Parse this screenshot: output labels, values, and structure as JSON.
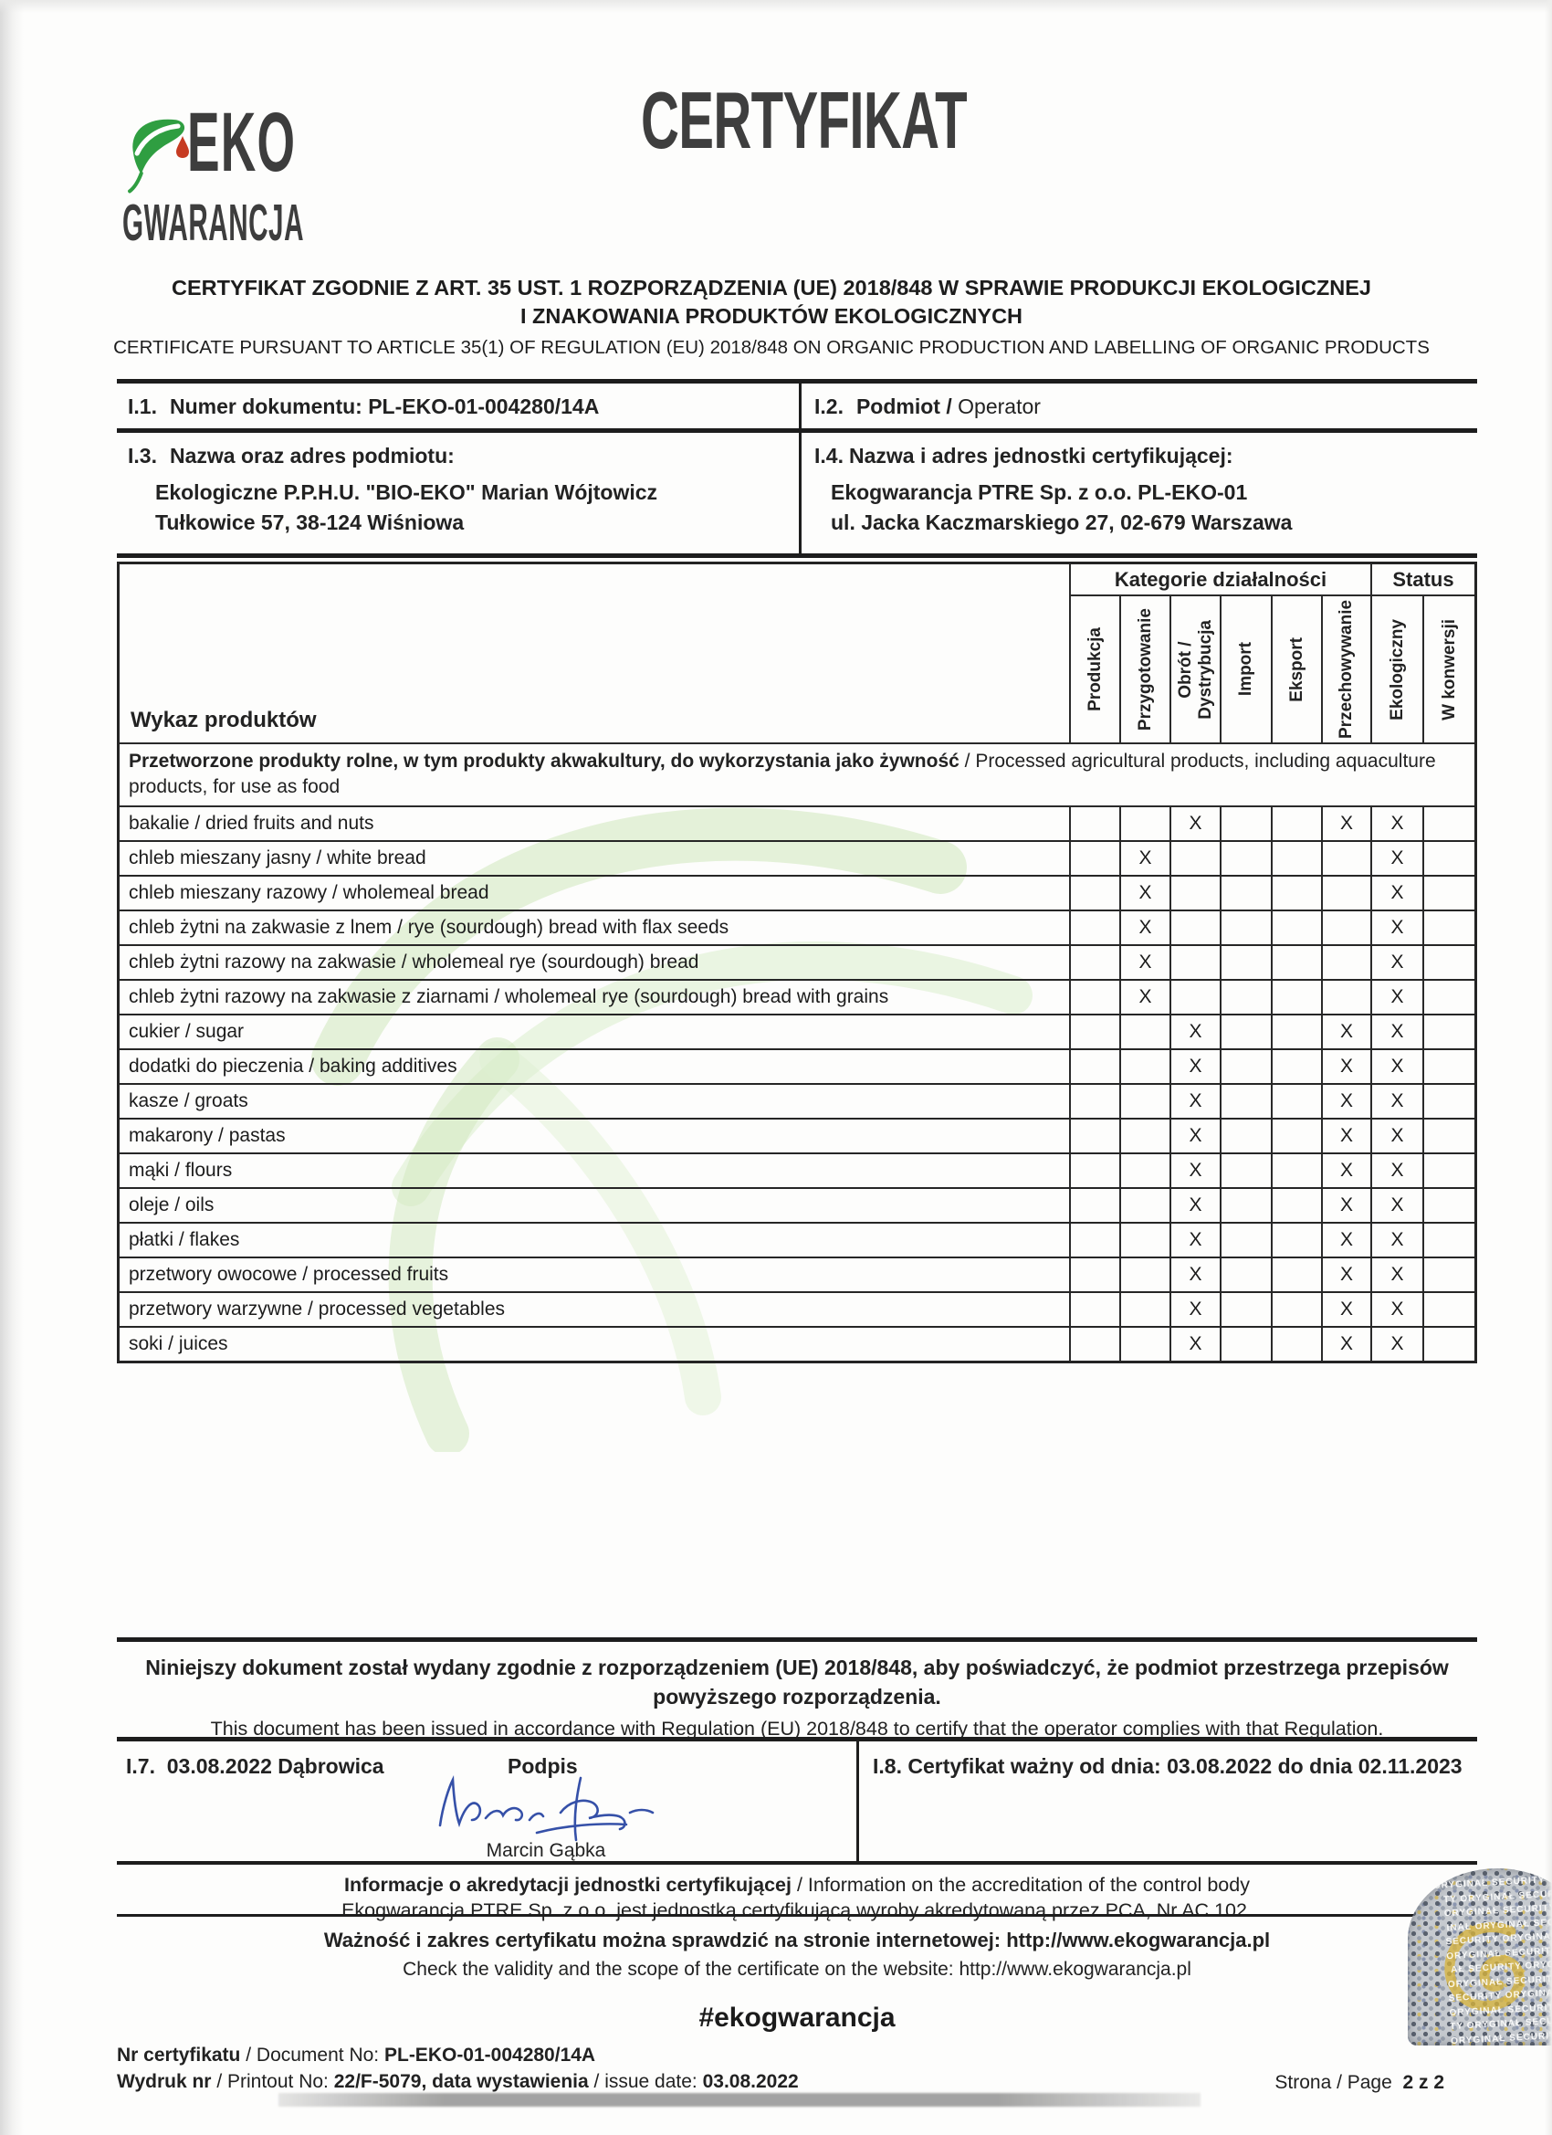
{
  "logo": {
    "line1": "EKO",
    "line2": "GWARANCJA"
  },
  "title": "CERTYFIKAT",
  "subtitle": {
    "pl_line1": "CERTYFIKAT ZGODNIE Z ART. 35 UST. 1 ROZPORZĄDZENIA (UE) 2018/848 W SPRAWIE PRODUKCJI EKOLOGICZNEJ",
    "pl_line2": "I ZNAKOWANIA PRODUKTÓW EKOLOGICZNYCH",
    "en": "CERTIFICATE PURSUANT TO ARTICLE 35(1) OF REGULATION (EU) 2018/848 ON ORGANIC PRODUCTION AND LABELLING OF ORGANIC PRODUCTS"
  },
  "fields": {
    "i1": {
      "num": "I.1.",
      "text": "Numer dokumentu: PL-EKO-01-004280/14A"
    },
    "i2": {
      "num": "I.2.",
      "pl": "Podmiot /",
      "en": "Operator"
    },
    "i3": {
      "num": "I.3.",
      "label": "Nazwa oraz adres podmiotu:",
      "line1": "Ekologiczne P.P.H.U. \"BIO-EKO\" Marian Wójtowicz",
      "line2": "Tułkowice 57, 38-124 Wiśniowa"
    },
    "i4": {
      "num": "I.4.",
      "label": "Nazwa i adres jednostki certyfikującej:",
      "line1": "Ekogwarancja PTRE Sp. z o.o. PL-EKO-01",
      "line2": "ul. Jacka Kaczmarskiego 27, 02-679 Warszawa"
    }
  },
  "table": {
    "products_header": "Wykaz produktów",
    "group_activities": "Kategorie działalności",
    "group_status": "Status",
    "columns": [
      "Produkcja",
      "Przygotowanie",
      "Obrót /\nDystrybucja",
      "Import",
      "Eksport",
      "Przechowywanie",
      "Ekologiczny",
      "W konwersji"
    ],
    "section_pl": "Przetworzone produkty rolne, w tym produkty akwakultury, do wykorzystania jako żywność",
    "section_sep": " / ",
    "section_en": "Processed agricultural products, including aquaculture products, for use as food",
    "mark": "X",
    "rows": [
      {
        "name": "bakalie / dried fruits and nuts",
        "marks": [
          0,
          0,
          1,
          0,
          0,
          1,
          1,
          0
        ]
      },
      {
        "name": "chleb mieszany jasny / white bread",
        "marks": [
          0,
          1,
          0,
          0,
          0,
          0,
          1,
          0
        ]
      },
      {
        "name": "chleb mieszany razowy / wholemeal bread",
        "marks": [
          0,
          1,
          0,
          0,
          0,
          0,
          1,
          0
        ]
      },
      {
        "name": "chleb żytni na zakwasie z lnem / rye (sourdough) bread with flax seeds",
        "marks": [
          0,
          1,
          0,
          0,
          0,
          0,
          1,
          0
        ]
      },
      {
        "name": "chleb żytni razowy na zakwasie / wholemeal rye (sourdough) bread",
        "marks": [
          0,
          1,
          0,
          0,
          0,
          0,
          1,
          0
        ]
      },
      {
        "name": "chleb żytni razowy na zakwasie z ziarnami / wholemeal rye (sourdough) bread with grains",
        "marks": [
          0,
          1,
          0,
          0,
          0,
          0,
          1,
          0
        ]
      },
      {
        "name": "cukier / sugar",
        "marks": [
          0,
          0,
          1,
          0,
          0,
          1,
          1,
          0
        ]
      },
      {
        "name": "dodatki do pieczenia / baking additives",
        "marks": [
          0,
          0,
          1,
          0,
          0,
          1,
          1,
          0
        ]
      },
      {
        "name": "kasze / groats",
        "marks": [
          0,
          0,
          1,
          0,
          0,
          1,
          1,
          0
        ]
      },
      {
        "name": "makarony / pastas",
        "marks": [
          0,
          0,
          1,
          0,
          0,
          1,
          1,
          0
        ]
      },
      {
        "name": "mąki / flours",
        "marks": [
          0,
          0,
          1,
          0,
          0,
          1,
          1,
          0
        ]
      },
      {
        "name": "oleje / oils",
        "marks": [
          0,
          0,
          1,
          0,
          0,
          1,
          1,
          0
        ]
      },
      {
        "name": "płatki / flakes",
        "marks": [
          0,
          0,
          1,
          0,
          0,
          1,
          1,
          0
        ]
      },
      {
        "name": "przetwory owocowe / processed fruits",
        "marks": [
          0,
          0,
          1,
          0,
          0,
          1,
          1,
          0
        ]
      },
      {
        "name": "przetwory warzywne / processed vegetables",
        "marks": [
          0,
          0,
          1,
          0,
          0,
          1,
          1,
          0
        ]
      },
      {
        "name": "soki / juices",
        "marks": [
          0,
          0,
          1,
          0,
          0,
          1,
          1,
          0
        ]
      }
    ]
  },
  "statement": {
    "pl_line1": "Niniejszy dokument został wydany zgodnie z rozporządzeniem (UE) 2018/848, aby poświadczyć, że podmiot przestrzega przepisów",
    "pl_line2": "powyższego rozporządzenia.",
    "en": "This document has been issued in accordance with Regulation (EU) 2018/848 to certify that the operator complies with that Regulation."
  },
  "issue": {
    "i7_num": "I.7.",
    "i7_text": "03.08.2022 Dąbrowica",
    "podpis_label": "Podpis",
    "signer": "Marcin Gąbka",
    "i8_num": "I.8.",
    "i8_text": "Certyfikat ważny od dnia: 03.08.2022 do dnia 02.11.2023"
  },
  "accreditation": {
    "line1_pl": "Informacje o akredytacji jednostki certyfikującej",
    "line1_sep": " / ",
    "line1_en": "Information on the accreditation of the control body",
    "line2": "Ekogwarancja PTRE Sp. z o.o. jest jednostką certyfikującą wyroby akredytowaną przez PCA, Nr AC 102.",
    "validity_pl": "Ważność i zakres certyfikatu można sprawdzić na stronie internetowej: http://www.ekogwarancja.pl",
    "validity_en": "Check the validity and the scope of the certificate on the website: http://www.ekogwarancja.pl",
    "hashtag": "#ekogwarancja"
  },
  "footer": {
    "cert_label_pl": "Nr certyfikatu",
    "cert_label_en": "/ Document No:",
    "cert_value": "PL-EKO-01-004280/14A",
    "printout_label_pl": "Wydruk nr",
    "printout_label_en": "/ Printout No:",
    "printout_value": "22/F-5079, data wystawienia",
    "issue_date_label": "/ issue date:",
    "issue_date_value": "03.08.2022",
    "page_label": "Strona / Page",
    "page_value": "2 z 2"
  },
  "sticker": {
    "pattern_text": "ORYGINAŁ SECURITY OR\nTY ORYGINAŁ SECUR\nORYGINAŁ SECURITY\nINAŁ ORYGINAŁ SEC\nSECURITY ORYGINAŁ\nORYGINAŁ SECURITY\nAŁ SECURITY ORYG\nORYGINAŁ SECURITY\nSECURITY ORYGINAŁ\nORYGINAŁ SECURITY\nTY ORYGINAŁ SECUR\nORYGINAŁ SECURITY"
  },
  "colors": {
    "ink": "#222222",
    "leaf_green": "#2f9e41",
    "drop_red": "#c63b22",
    "signature_blue": "#3550a8",
    "watermark_green": "#cfe7bc",
    "sticker_gold": "#d7b43c"
  }
}
